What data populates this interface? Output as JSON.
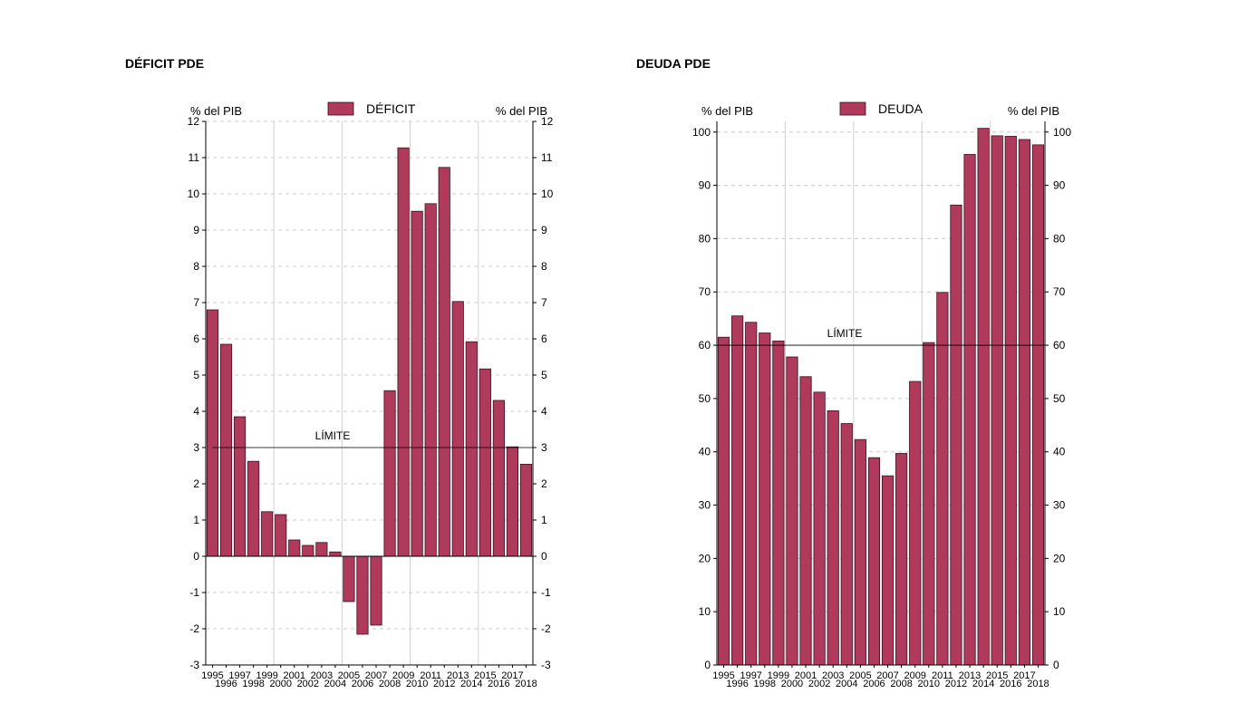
{
  "colors": {
    "bar": "#b03a5b",
    "bar_edge": "#3a1020",
    "grid": "#c8c8c8",
    "axis": "#000000"
  },
  "chart_data": [
    {
      "type": "bar",
      "title": "DÉFICIT PDE",
      "legend": "DÉFICIT",
      "ylabel_left": "% del PIB",
      "ylabel_right": "% del PIB",
      "ylim": [
        -3,
        12
      ],
      "yticks": [
        "12",
        "11",
        "10",
        "9",
        "8",
        "7",
        "6",
        "5",
        "4",
        "3",
        "2",
        "1",
        "0",
        "-1",
        "-2",
        "-3"
      ],
      "categories": [
        "1995",
        "1996",
        "1997",
        "1998",
        "1999",
        "2000",
        "2001",
        "2002",
        "2003",
        "2004",
        "2005",
        "2006",
        "2007",
        "2008",
        "2009",
        "2010",
        "2011",
        "2012",
        "2013",
        "2014",
        "2015",
        "2016",
        "2017",
        "2018"
      ],
      "values": [
        6.8,
        5.85,
        3.85,
        2.62,
        1.23,
        1.15,
        0.45,
        0.3,
        0.38,
        0.12,
        -1.25,
        -2.15,
        -1.9,
        4.57,
        11.27,
        9.52,
        9.73,
        10.73,
        7.03,
        5.92,
        5.17,
        4.3,
        3.02,
        2.54
      ],
      "limit": {
        "value": 3,
        "label": "LÍMITE"
      }
    },
    {
      "type": "bar",
      "title": "DEUDA PDE",
      "legend": "DEUDA",
      "ylabel_left": "% del PIB",
      "ylabel_right": "% del PIB",
      "ylim": [
        0,
        102
      ],
      "yticks": [
        "100",
        "90",
        "80",
        "70",
        "60",
        "50",
        "40",
        "30",
        "20",
        "10",
        "0"
      ],
      "categories": [
        "1995",
        "1996",
        "1997",
        "1998",
        "1999",
        "2000",
        "2001",
        "2002",
        "2003",
        "2004",
        "2005",
        "2006",
        "2007",
        "2008",
        "2009",
        "2010",
        "2011",
        "2012",
        "2013",
        "2014",
        "2015",
        "2016",
        "2017",
        "2018"
      ],
      "values": [
        61.5,
        65.5,
        64.3,
        62.3,
        60.8,
        57.8,
        54.1,
        51.2,
        47.7,
        45.3,
        42.3,
        38.9,
        35.5,
        39.7,
        53.2,
        60.5,
        69.9,
        86.3,
        95.8,
        100.7,
        99.3,
        99.2,
        98.6,
        97.6
      ],
      "limit": {
        "value": 60,
        "label": "LÍMITE"
      }
    }
  ]
}
